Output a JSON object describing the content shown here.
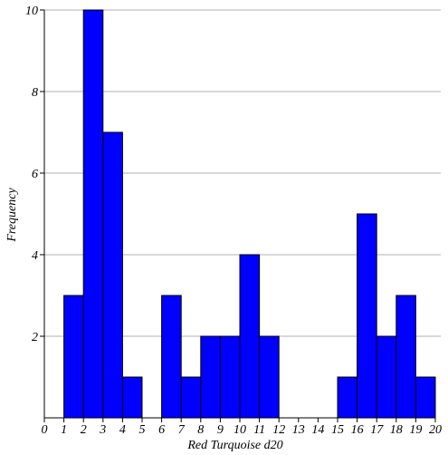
{
  "chart_data": {
    "type": "bar",
    "title": "",
    "xlabel": "Red Turquoise d20",
    "ylabel": "Frequency",
    "x_ticks": [
      "0",
      "1",
      "2",
      "3",
      "4",
      "5",
      "6",
      "7",
      "8",
      "9",
      "10",
      "11",
      "12",
      "13",
      "14",
      "15",
      "16",
      "17",
      "18",
      "19",
      "20"
    ],
    "y_ticks": [
      "2",
      "4",
      "6",
      "8",
      "10"
    ],
    "xlim": [
      0,
      20
    ],
    "ylim": [
      0,
      10
    ],
    "grid": true,
    "bar_color": "#0000ff",
    "bins": [
      {
        "start": 1,
        "end": 2,
        "value": 3
      },
      {
        "start": 2,
        "end": 3,
        "value": 10
      },
      {
        "start": 3,
        "end": 4,
        "value": 7
      },
      {
        "start": 4,
        "end": 5,
        "value": 1
      },
      {
        "start": 5,
        "end": 6,
        "value": 0
      },
      {
        "start": 6,
        "end": 7,
        "value": 3
      },
      {
        "start": 7,
        "end": 8,
        "value": 1
      },
      {
        "start": 8,
        "end": 9,
        "value": 2
      },
      {
        "start": 9,
        "end": 10,
        "value": 2
      },
      {
        "start": 10,
        "end": 11,
        "value": 4
      },
      {
        "start": 11,
        "end": 12,
        "value": 2
      },
      {
        "start": 12,
        "end": 13,
        "value": 0
      },
      {
        "start": 13,
        "end": 14,
        "value": 0
      },
      {
        "start": 14,
        "end": 15,
        "value": 0
      },
      {
        "start": 15,
        "end": 16,
        "value": 1
      },
      {
        "start": 16,
        "end": 17,
        "value": 5
      },
      {
        "start": 17,
        "end": 18,
        "value": 2
      },
      {
        "start": 18,
        "end": 19,
        "value": 3
      },
      {
        "start": 19,
        "end": 20,
        "value": 1
      }
    ]
  }
}
